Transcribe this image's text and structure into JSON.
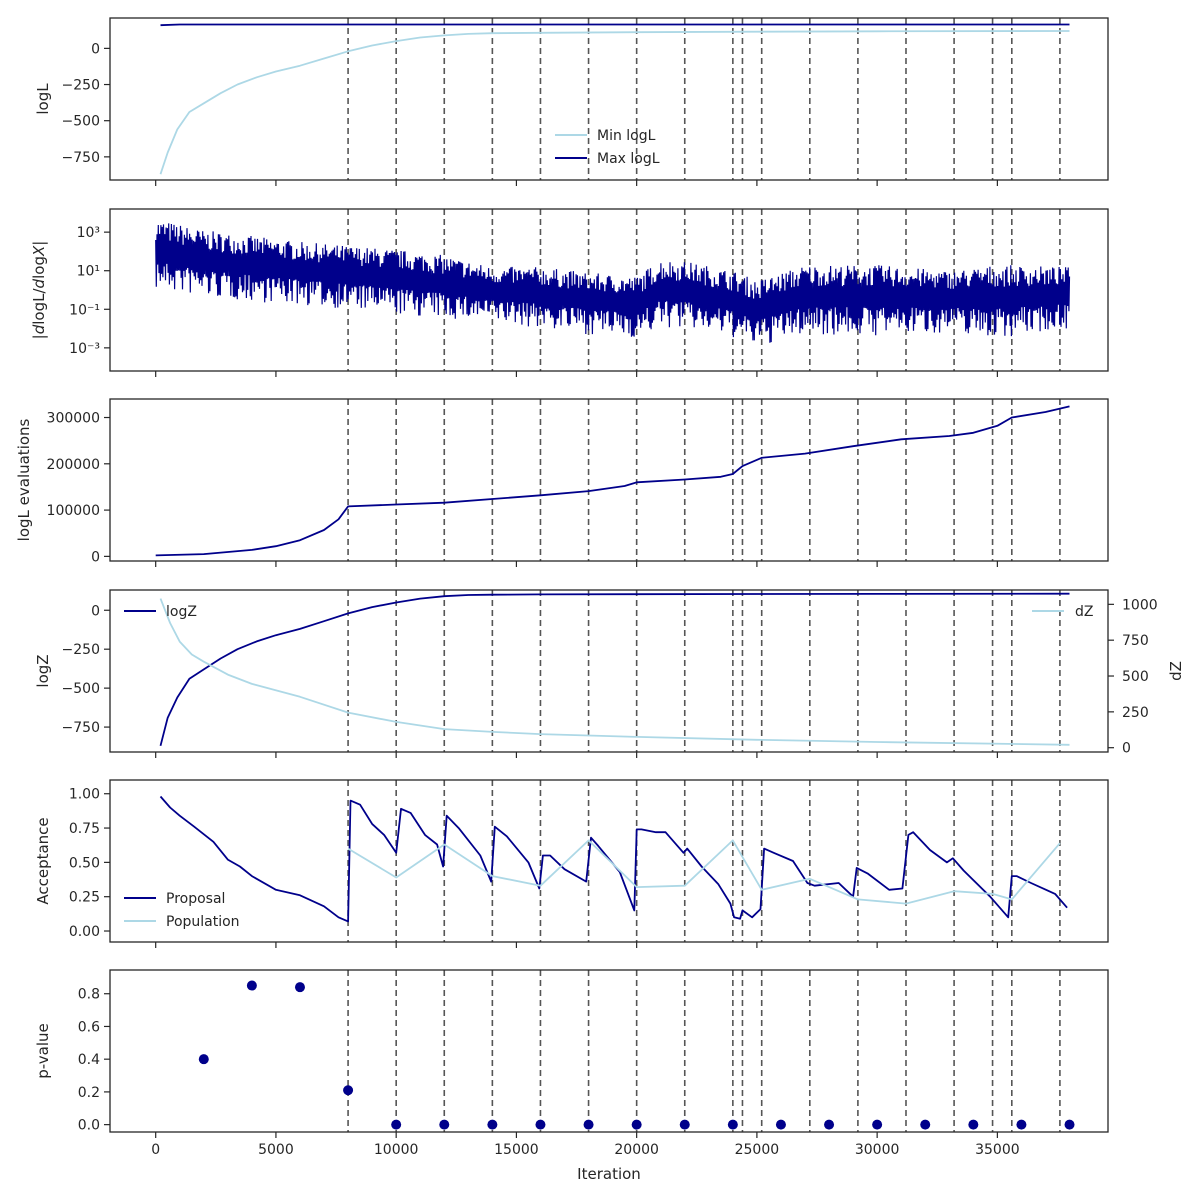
{
  "colors": {
    "navy": "#00008b",
    "light": "#add8e6",
    "frame": "#262626",
    "vline": "#555555"
  },
  "chart_data": [
    {
      "type": "line",
      "ylabel": "logL",
      "ylim": [
        -910,
        210
      ],
      "yticks": [
        {
          "v": 0,
          "t": "0"
        },
        {
          "v": -250,
          "t": "−250"
        },
        {
          "v": -500,
          "t": "−500"
        },
        {
          "v": -750,
          "t": "−750"
        }
      ],
      "legend": {
        "position": "bottom-center"
      },
      "series": [
        {
          "name": "Min logL",
          "color": "light",
          "x": [
            200,
            500,
            900,
            1400,
            2000,
            2700,
            3400,
            4200,
            5000,
            6000,
            7000,
            8000,
            9000,
            10000,
            11000,
            12000,
            13000,
            14000,
            16000,
            20000,
            25000,
            30000,
            38000
          ],
          "y": [
            -870,
            -720,
            -560,
            -440,
            -380,
            -310,
            -250,
            -200,
            -160,
            -120,
            -70,
            -20,
            20,
            50,
            75,
            90,
            100,
            105,
            108,
            112,
            115,
            118,
            120
          ]
        },
        {
          "name": "Max logL",
          "color": "navy",
          "x": [
            200,
            1000,
            38000
          ],
          "y": [
            160,
            165,
            165
          ]
        }
      ]
    },
    {
      "type": "line",
      "ylabel": "|dlogL/dlogX|",
      "yscale": "log",
      "ylim_log10": [
        -4.2,
        4.2
      ],
      "yticks": [
        {
          "e": 3,
          "t": "10³"
        },
        {
          "e": 1,
          "t": "10¹"
        },
        {
          "e": -1,
          "t": "10⁻¹"
        },
        {
          "e": -3,
          "t": "10⁻³"
        }
      ],
      "series": [
        {
          "name": "",
          "color": "navy",
          "x": [
            0,
            2000,
            4000,
            6000,
            8000,
            10000,
            12000,
            14000,
            16000,
            18000,
            20000,
            21000,
            22000,
            24000,
            25000,
            27000,
            30000,
            33000,
            35000,
            38000
          ],
          "upper_log10": [
            3.7,
            3.1,
            2.8,
            2.5,
            2.3,
            2.1,
            1.8,
            1.2,
            1.2,
            0.9,
            0.7,
            1.6,
            1.5,
            1.0,
            0.5,
            1.3,
            1.3,
            1.0,
            1.3,
            1.2
          ],
          "lower_log10": [
            0.0,
            -0.4,
            -0.6,
            -0.8,
            -1.0,
            -1.3,
            -1.5,
            -1.7,
            -2.0,
            -2.3,
            -2.5,
            -2.0,
            -2.0,
            -2.5,
            -3.0,
            -2.3,
            -2.4,
            -2.2,
            -2.5,
            -2.0
          ]
        }
      ]
    },
    {
      "type": "line",
      "ylabel": "logL evaluations",
      "ylim": [
        -10000,
        340000
      ],
      "yticks": [
        {
          "v": 0,
          "t": "0"
        },
        {
          "v": 100000,
          "t": "100000"
        },
        {
          "v": 200000,
          "t": "200000"
        },
        {
          "v": 300000,
          "t": "300000"
        }
      ],
      "series": [
        {
          "name": "",
          "color": "navy",
          "x": [
            0,
            2000,
            4000,
            5000,
            6000,
            7000,
            7600,
            8000,
            10000,
            12000,
            14000,
            16000,
            18000,
            19500,
            20000,
            22000,
            23500,
            24000,
            24400,
            25200,
            27000,
            29000,
            31000,
            33000,
            34000,
            35000,
            35600,
            37000,
            38000
          ],
          "y": [
            2000,
            5000,
            14000,
            22000,
            35000,
            57000,
            80000,
            108000,
            112000,
            116000,
            124000,
            132000,
            141000,
            152000,
            160000,
            166000,
            172000,
            178000,
            195000,
            213000,
            222000,
            238000,
            253000,
            260000,
            267000,
            282000,
            300000,
            312000,
            324000
          ]
        }
      ]
    },
    {
      "type": "line",
      "ylabel": "logZ",
      "ylabel_right": "dZ",
      "ylim": [
        -910,
        130
      ],
      "ylim_right": [
        -30,
        1100
      ],
      "yticks": [
        {
          "v": 0,
          "t": "0"
        },
        {
          "v": -250,
          "t": "−250"
        },
        {
          "v": -500,
          "t": "−500"
        },
        {
          "v": -750,
          "t": "−750"
        }
      ],
      "yticks_right": [
        {
          "v": 0,
          "t": "0"
        },
        {
          "v": 250,
          "t": "250"
        },
        {
          "v": 500,
          "t": "500"
        },
        {
          "v": 750,
          "t": "750"
        },
        {
          "v": 1000,
          "t": "1000"
        }
      ],
      "series": [
        {
          "name": "logZ",
          "color": "navy",
          "axis": "left",
          "x": [
            200,
            500,
            900,
            1400,
            2000,
            2700,
            3400,
            4200,
            5000,
            6000,
            7000,
            8000,
            9000,
            10000,
            11000,
            12000,
            13000,
            14000,
            16000,
            20000,
            25000,
            30000,
            38000
          ],
          "y": [
            -870,
            -690,
            -560,
            -440,
            -380,
            -310,
            -250,
            -200,
            -160,
            -120,
            -70,
            -20,
            20,
            50,
            75,
            90,
            98,
            100,
            102,
            103,
            104,
            105,
            106
          ]
        },
        {
          "name": "dZ",
          "color": "light",
          "axis": "right",
          "x": [
            200,
            600,
            1000,
            1500,
            2000,
            3000,
            4000,
            6000,
            8000,
            10000,
            12000,
            14000,
            16000,
            20000,
            25000,
            30000,
            38000
          ],
          "y": [
            1040,
            870,
            740,
            650,
            600,
            510,
            445,
            355,
            245,
            180,
            130,
            110,
            95,
            75,
            55,
            40,
            20
          ]
        }
      ]
    },
    {
      "type": "line",
      "ylabel": "Acceptance",
      "ylim": [
        -0.08,
        1.1
      ],
      "yticks": [
        {
          "v": 1,
          "t": "1.00"
        },
        {
          "v": 0.75,
          "t": "0.75"
        },
        {
          "v": 0.5,
          "t": "0.50"
        },
        {
          "v": 0.25,
          "t": "0.25"
        },
        {
          "v": 0,
          "t": "0.00"
        }
      ],
      "legend": {
        "position": "bottom-left"
      },
      "series": [
        {
          "name": "Proposal",
          "color": "navy",
          "x": [
            200,
            600,
            1000,
            1600,
            2400,
            3000,
            3500,
            4000,
            5000,
            6000,
            7000,
            7600,
            8000,
            8100,
            8500,
            9000,
            9500,
            10000,
            10200,
            10600,
            11200,
            11700,
            11950,
            12100,
            12600,
            13500,
            13950,
            14100,
            14600,
            15500,
            15950,
            16100,
            16400,
            17000,
            17900,
            18100,
            18400,
            19300,
            19900,
            20000,
            20200,
            20800,
            21200,
            21950,
            22100,
            22700,
            23400,
            23900,
            24050,
            24300,
            24400,
            24800,
            25150,
            25300,
            25700,
            26500,
            27100,
            27400,
            28400,
            29000,
            29150,
            29600,
            30500,
            31050,
            31300,
            31500,
            32200,
            32900,
            33150,
            33600,
            34700,
            35450,
            35600,
            35800,
            36400,
            37400,
            37900
          ],
          "y": [
            0.98,
            0.9,
            0.84,
            0.76,
            0.65,
            0.52,
            0.47,
            0.4,
            0.3,
            0.26,
            0.18,
            0.1,
            0.07,
            0.95,
            0.92,
            0.78,
            0.7,
            0.57,
            0.89,
            0.86,
            0.7,
            0.63,
            0.47,
            0.84,
            0.75,
            0.55,
            0.36,
            0.76,
            0.69,
            0.5,
            0.31,
            0.55,
            0.55,
            0.45,
            0.36,
            0.68,
            0.62,
            0.43,
            0.15,
            0.74,
            0.74,
            0.72,
            0.72,
            0.57,
            0.6,
            0.47,
            0.34,
            0.2,
            0.1,
            0.09,
            0.15,
            0.1,
            0.16,
            0.6,
            0.57,
            0.51,
            0.35,
            0.33,
            0.35,
            0.25,
            0.46,
            0.42,
            0.3,
            0.31,
            0.7,
            0.72,
            0.59,
            0.5,
            0.53,
            0.44,
            0.25,
            0.1,
            0.4,
            0.4,
            0.35,
            0.27,
            0.17
          ]
        },
        {
          "name": "Population",
          "color": "light",
          "x": [
            8000,
            10000,
            12000,
            14000,
            16000,
            18000,
            20000,
            22000,
            24000,
            25200,
            27200,
            29200,
            31200,
            33200,
            34800,
            35600,
            37600
          ],
          "y": [
            0.6,
            0.39,
            0.63,
            0.4,
            0.33,
            0.66,
            0.32,
            0.33,
            0.66,
            0.3,
            0.38,
            0.23,
            0.2,
            0.29,
            0.27,
            0.23,
            0.64
          ]
        }
      ]
    },
    {
      "type": "scatter",
      "ylabel": "p-value",
      "xlabel": "Iteration",
      "ylim": [
        -0.045,
        0.945
      ],
      "yticks": [
        {
          "v": 0.8,
          "t": "0.8"
        },
        {
          "v": 0.6,
          "t": "0.6"
        },
        {
          "v": 0.4,
          "t": "0.4"
        },
        {
          "v": 0.2,
          "t": "0.2"
        },
        {
          "v": 0,
          "t": "0.0"
        }
      ],
      "series": [
        {
          "name": "",
          "color": "navy",
          "x": [
            2000,
            4000,
            6000,
            8000,
            10000,
            12000,
            14000,
            16000,
            18000,
            20000,
            22000,
            24000,
            26000,
            28000,
            30000,
            32000,
            34000,
            36000,
            38000
          ],
          "y": [
            0.4,
            0.85,
            0.84,
            0.21,
            0,
            0,
            0,
            0,
            0,
            0,
            0,
            0,
            0,
            0,
            0,
            0,
            0,
            0,
            0
          ]
        }
      ]
    }
  ],
  "shared_x": {
    "xlim": [
      -1900,
      39600
    ],
    "xticks": [
      {
        "v": 0,
        "t": "0"
      },
      {
        "v": 5000,
        "t": "5000"
      },
      {
        "v": 10000,
        "t": "10000"
      },
      {
        "v": 15000,
        "t": "15000"
      },
      {
        "v": 20000,
        "t": "20000"
      },
      {
        "v": 25000,
        "t": "25000"
      },
      {
        "v": 30000,
        "t": "30000"
      },
      {
        "v": 35000,
        "t": "35000"
      }
    ]
  },
  "vlines_x": [
    8000,
    10000,
    12000,
    14000,
    16000,
    18000,
    20000,
    22000,
    24000,
    24400,
    25200,
    27200,
    29200,
    31200,
    33200,
    34800,
    35600,
    37600
  ]
}
